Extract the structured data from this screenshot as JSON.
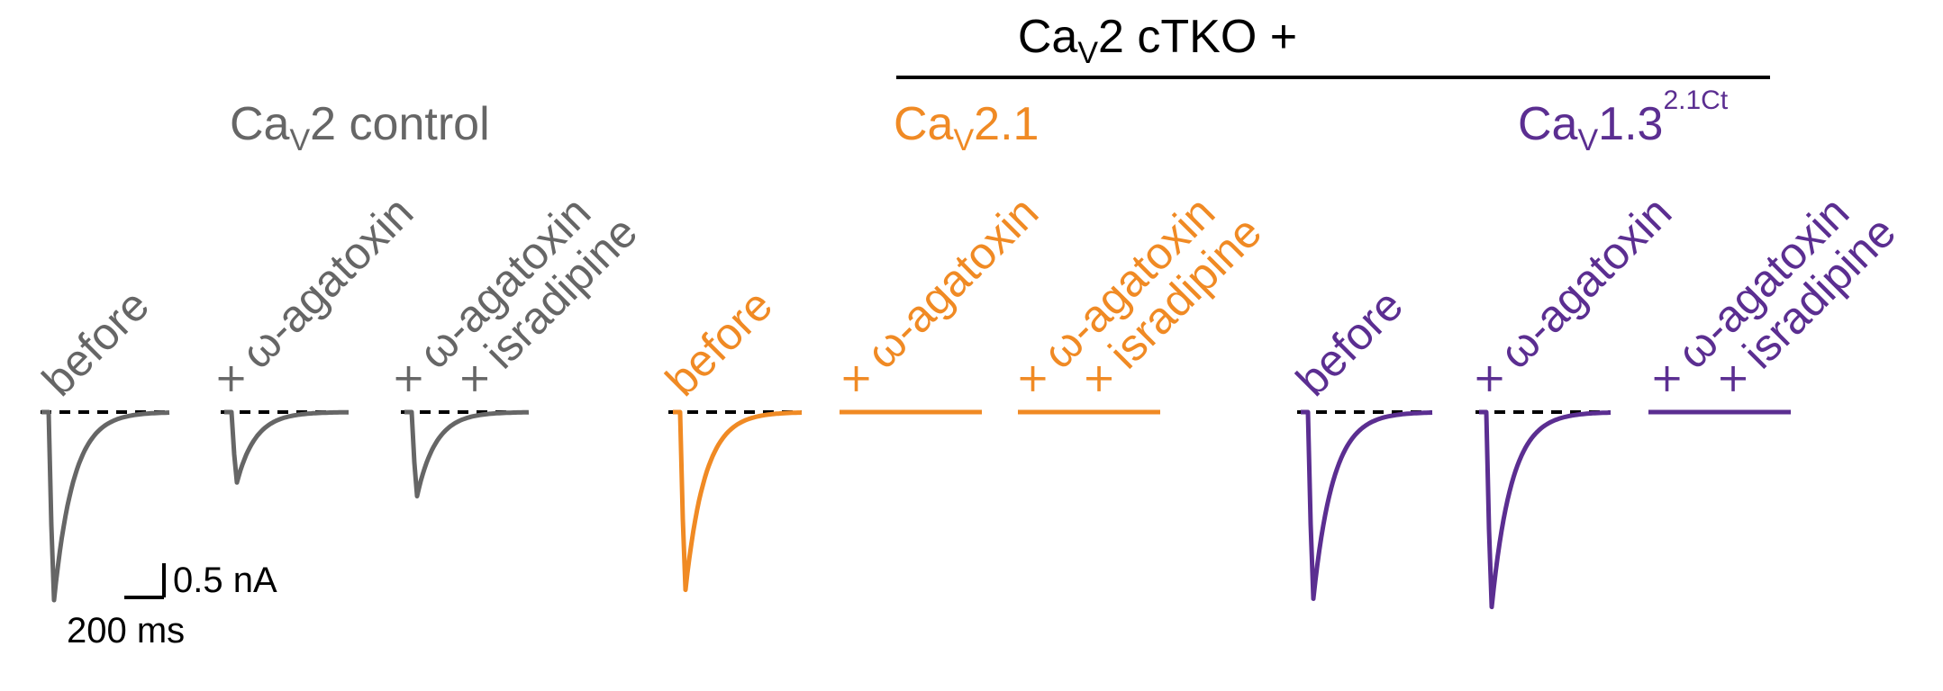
{
  "header": {
    "group_title_main": "Ca",
    "group_title_sub": "V",
    "group_title_rest": "2 cTKO +"
  },
  "colors": {
    "control": "#666666",
    "cav21": "#F08A24",
    "cav13": "#5B2E91",
    "baseline": "#000000"
  },
  "groups": [
    {
      "id": "control",
      "label_main": "Ca",
      "label_sub": "V",
      "label_rest": "2 control",
      "label_sup": "",
      "color": "#666666",
      "conditions": [
        {
          "id": "before",
          "lines": [
            "before"
          ],
          "amplitude_nA": 2.75
        },
        {
          "id": "aga",
          "lines": [
            "× ω-agatoxin"
          ],
          "amplitude_nA": 1.03
        },
        {
          "id": "aga-isr",
          "lines": [
            "× ω-agatoxin",
            "× isradipine"
          ],
          "amplitude_nA": 1.23
        }
      ]
    },
    {
      "id": "cav21",
      "label_main": "Ca",
      "label_sub": "V",
      "label_rest": "2.1",
      "label_sup": "",
      "color": "#F08A24",
      "conditions": [
        {
          "id": "before",
          "lines": [
            "before"
          ],
          "amplitude_nA": 2.6
        },
        {
          "id": "aga",
          "lines": [
            "× ω-agatoxin"
          ],
          "amplitude_nA": 0.0
        },
        {
          "id": "aga-isr",
          "lines": [
            "× ω-agatoxin",
            "× isradipine"
          ],
          "amplitude_nA": 0.0
        }
      ]
    },
    {
      "id": "cav13",
      "label_main": "Ca",
      "label_sub": "V",
      "label_rest": "1.3",
      "label_sup": "2.1Ct",
      "color": "#5B2E91",
      "conditions": [
        {
          "id": "before",
          "lines": [
            "before"
          ],
          "amplitude_nA": 2.73
        },
        {
          "id": "aga",
          "lines": [
            "× ω-agatoxin"
          ],
          "amplitude_nA": 2.85
        },
        {
          "id": "aga-isr",
          "lines": [
            "× ω-agatoxin",
            "× isradipine"
          ],
          "amplitude_nA": 0.0
        }
      ]
    }
  ],
  "scale_bar": {
    "current_label": "0.5 nA",
    "time_label": "200 ms",
    "current_nA": 0.5,
    "time_ms": 200
  }
}
